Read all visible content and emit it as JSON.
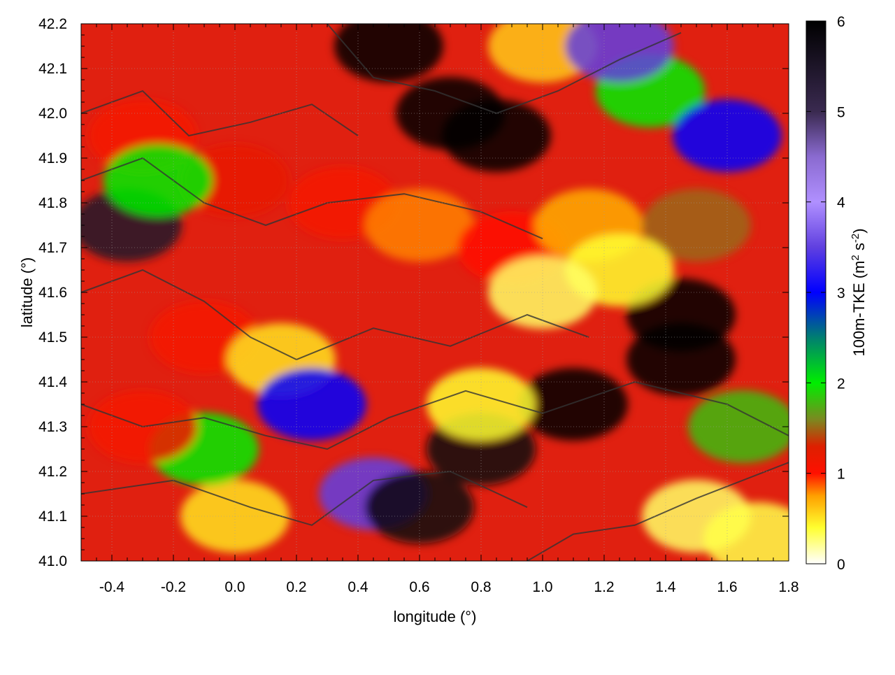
{
  "chart_data": {
    "type": "heatmap",
    "title": "",
    "xlabel": "longitude (°)",
    "ylabel": "latitude (°)",
    "xlim": [
      -0.5,
      1.8
    ],
    "ylim": [
      41.0,
      42.2
    ],
    "x_ticks": [
      -0.4,
      -0.2,
      0.0,
      0.2,
      0.4,
      0.6,
      0.8,
      1.0,
      1.2,
      1.4,
      1.6,
      1.8
    ],
    "x_tick_labels": [
      "-0.4",
      "-0.2",
      "0.0",
      "0.2",
      "0.4",
      "0.6",
      "0.8",
      "1.0",
      "1.2",
      "1.4",
      "1.6",
      "1.8"
    ],
    "y_ticks": [
      41.0,
      41.1,
      41.2,
      41.3,
      41.4,
      41.5,
      41.6,
      41.7,
      41.8,
      41.9,
      42.0,
      42.1,
      42.2
    ],
    "y_tick_labels": [
      "41.0",
      "41.1",
      "41.2",
      "41.3",
      "41.4",
      "41.5",
      "41.6",
      "41.7",
      "41.8",
      "41.9",
      "42.0",
      "42.1",
      "42.2"
    ],
    "grid": true,
    "colorbar": {
      "label": "100m-TKE (m² s⁻²)",
      "label_main": "100m-TKE (m",
      "label_sup1": "2",
      "label_mid": " s",
      "label_sup2": "-2",
      "label_end": ")",
      "range": [
        0,
        6
      ],
      "ticks": [
        0,
        1,
        2,
        3,
        4,
        5,
        6
      ],
      "tick_labels": [
        "0",
        "1",
        "2",
        "3",
        "4",
        "5",
        "6"
      ],
      "stops": [
        {
          "value": 0.0,
          "color": "#ffffff"
        },
        {
          "value": 0.4,
          "color": "#ffff30"
        },
        {
          "value": 0.75,
          "color": "#ffa000"
        },
        {
          "value": 1.0,
          "color": "#ff1000"
        },
        {
          "value": 1.3,
          "color": "#dd2000"
        },
        {
          "value": 1.6,
          "color": "#7a8a20"
        },
        {
          "value": 2.0,
          "color": "#00ee00"
        },
        {
          "value": 2.5,
          "color": "#007f70"
        },
        {
          "value": 3.0,
          "color": "#0000ff"
        },
        {
          "value": 3.5,
          "color": "#6040e0"
        },
        {
          "value": 4.0,
          "color": "#b090ff"
        },
        {
          "value": 4.5,
          "color": "#8a6ad0"
        },
        {
          "value": 5.0,
          "color": "#3a2a50"
        },
        {
          "value": 6.0,
          "color": "#000000"
        }
      ]
    },
    "field_regions": [
      {
        "lon": -0.3,
        "lat": 41.95,
        "tke": 1.1
      },
      {
        "lon": 0.0,
        "lat": 41.85,
        "tke": 1.2
      },
      {
        "lon": 0.35,
        "lat": 41.8,
        "tke": 1.1
      },
      {
        "lon": 0.6,
        "lat": 41.75,
        "tke": 0.8
      },
      {
        "lon": 0.9,
        "lat": 41.7,
        "tke": 1.0
      },
      {
        "lon": 1.15,
        "lat": 41.75,
        "tke": 0.7
      },
      {
        "lon": -0.35,
        "lat": 41.75,
        "tke": 5.5
      },
      {
        "lon": -0.25,
        "lat": 41.85,
        "tke": 2.0
      },
      {
        "lon": -0.1,
        "lat": 41.5,
        "tke": 1.1
      },
      {
        "lon": 0.15,
        "lat": 41.45,
        "tke": 0.5
      },
      {
        "lon": 0.25,
        "lat": 41.35,
        "tke": 3.0
      },
      {
        "lon": 0.45,
        "lat": 41.15,
        "tke": 3.5
      },
      {
        "lon": 0.6,
        "lat": 41.12,
        "tke": 5.8
      },
      {
        "lon": 0.8,
        "lat": 41.25,
        "tke": 5.8
      },
      {
        "lon": 1.1,
        "lat": 41.35,
        "tke": 6.0
      },
      {
        "lon": 1.45,
        "lat": 41.45,
        "tke": 6.0
      },
      {
        "lon": 1.45,
        "lat": 41.55,
        "tke": 6.0
      },
      {
        "lon": 0.5,
        "lat": 42.15,
        "tke": 6.0
      },
      {
        "lon": 0.7,
        "lat": 42.0,
        "tke": 6.0
      },
      {
        "lon": 0.85,
        "lat": 41.95,
        "tke": 6.0
      },
      {
        "lon": 1.35,
        "lat": 42.05,
        "tke": 2.0
      },
      {
        "lon": 1.6,
        "lat": 41.95,
        "tke": 3.0
      },
      {
        "lon": 1.5,
        "lat": 41.75,
        "tke": 1.5
      },
      {
        "lon": 1.25,
        "lat": 41.65,
        "tke": 0.4
      },
      {
        "lon": 1.0,
        "lat": 41.6,
        "tke": 0.3
      },
      {
        "lon": 0.8,
        "lat": 41.35,
        "tke": 0.4
      },
      {
        "lon": 0.0,
        "lat": 41.1,
        "tke": 0.5
      },
      {
        "lon": 1.5,
        "lat": 41.1,
        "tke": 0.3
      },
      {
        "lon": 1.7,
        "lat": 41.05,
        "tke": 0.35
      },
      {
        "lon": 1.65,
        "lat": 41.3,
        "tke": 1.8
      },
      {
        "lon": -0.1,
        "lat": 41.25,
        "tke": 2.0
      },
      {
        "lon": -0.3,
        "lat": 41.3,
        "tke": 1.1
      },
      {
        "lon": 1.0,
        "lat": 42.15,
        "tke": 0.6
      },
      {
        "lon": 1.25,
        "lat": 42.15,
        "tke": 3.5
      }
    ]
  }
}
